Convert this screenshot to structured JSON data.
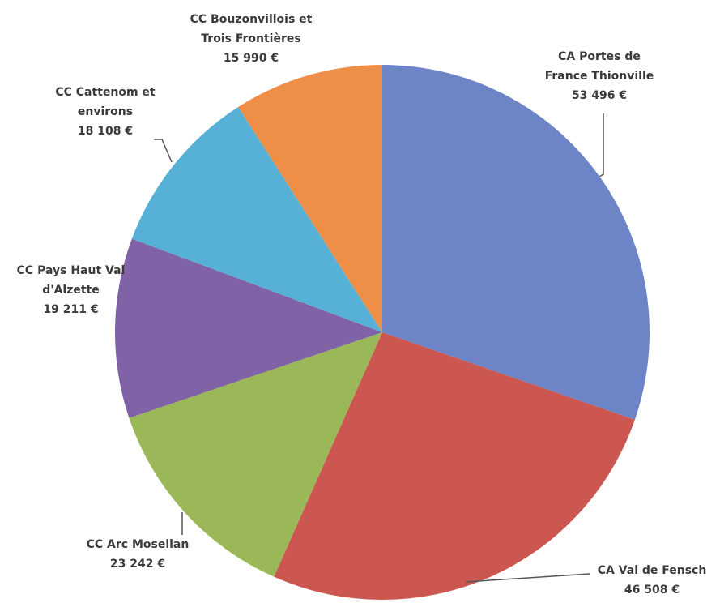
{
  "chart_data": {
    "type": "pie",
    "categories": [
      "CA Portes de\nFrance Thionville",
      "CA Val de Fensch",
      "CC Arc Mosellan",
      "CC Pays Haut Val\nd'Alzette",
      "CC Cattenom et\nenvirons",
      "CC Bouzonvillois et\nTrois Frontières"
    ],
    "values": [
      53496,
      46508,
      23242,
      19211,
      18108,
      15990
    ],
    "value_labels": [
      "53 496 €",
      "46 508 €",
      "23 242 €",
      "19 211 €",
      "18 108 €",
      "15 990 €"
    ],
    "colors": [
      "#6d84c6",
      "#cc5650",
      "#9bb858",
      "#8062a6",
      "#57b0d6",
      "#ef8f47"
    ]
  }
}
